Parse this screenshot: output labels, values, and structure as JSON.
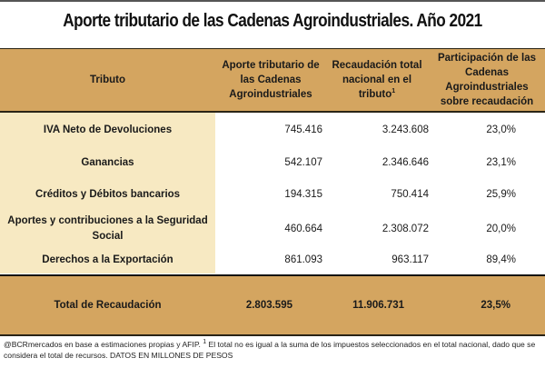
{
  "title": "Aporte tributario de las Cadenas Agroindustriales. Año 2021",
  "colors": {
    "header_bg": "#d4a560",
    "name_col_bg": "#f7e9c2",
    "border": "#2a2416"
  },
  "table": {
    "headers": {
      "tributo": "Tributo",
      "aporte": "Aporte tributario de las Cadenas Agroindustriales",
      "recaudacion": "Recaudación total nacional en el tributo",
      "recaudacion_sup": "1",
      "participacion": "Participación de las Cadenas Agroindustriales sobre recaudación"
    },
    "rows": [
      {
        "tributo": "IVA Neto de Devoluciones",
        "aporte": "745.416",
        "recaudacion": "3.243.608",
        "participacion": "23,0%"
      },
      {
        "tributo": "Ganancias",
        "aporte": "542.107",
        "recaudacion": "2.346.646",
        "participacion": "23,1%"
      },
      {
        "tributo": "Créditos y Débitos bancarios",
        "aporte": "194.315",
        "recaudacion": "750.414",
        "participacion": "25,9%"
      },
      {
        "tributo": "Aportes y contribuciones a la Seguridad Social",
        "aporte": "460.664",
        "recaudacion": "2.308.072",
        "participacion": "20,0%"
      },
      {
        "tributo": "Derechos a la Exportación",
        "aporte": "861.093",
        "recaudacion": "963.117",
        "participacion": "89,4%"
      }
    ],
    "total": {
      "tributo": "Total de Recaudación",
      "aporte": "2.803.595",
      "recaudacion": "11.906.731",
      "participacion": "23,5%"
    }
  },
  "footnote": {
    "part1": "@BCRmercados en base a estimaciones propias y AFIP.",
    "sup": "1",
    "part2": "El total no es igual a la suma de los impuestos seleccionados en el total nacional, dado que se considera el total de recursos. DATOS EN MILLONES DE PESOS"
  }
}
